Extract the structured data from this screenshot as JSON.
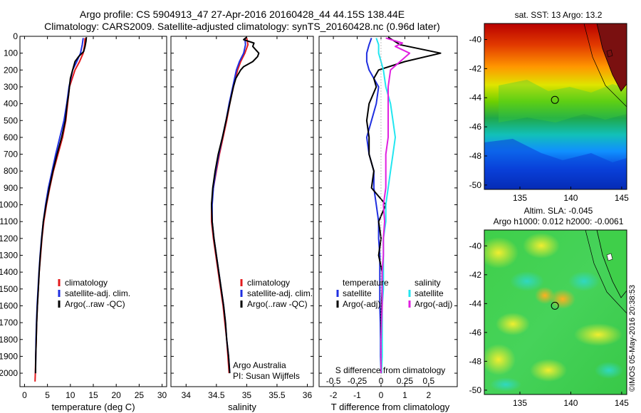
{
  "header": {
    "title_line1": "Argo profile: CS 5904913_47 27-Apr-2016 20160428_44 44.15S 138.44E",
    "title_line2": "Climatology: CARS2009. Satellite-adjusted climatology: synTS_20160428.nc (0.96d later)"
  },
  "colors": {
    "climatology": "#e31a1c",
    "satellite": "#1f2fe0",
    "argo": "#000000",
    "sal_satellite": "#22e6f0",
    "sal_argo": "#e020e0"
  },
  "chart_data": [
    {
      "id": "temperature",
      "type": "line",
      "xlabel": "temperature (deg C)",
      "ylabel": "",
      "xlim": [
        -1,
        31
      ],
      "ylim": [
        0,
        2080
      ],
      "y_inverted": true,
      "xticks": [
        0,
        5,
        10,
        15,
        20,
        25,
        30
      ],
      "yticks": [
        0,
        100,
        200,
        300,
        400,
        500,
        600,
        700,
        800,
        900,
        1000,
        1100,
        1200,
        1300,
        1400,
        1500,
        1600,
        1700,
        1800,
        1900,
        2000
      ],
      "legend": {
        "placement": "bottom-center",
        "entries": [
          "climatology",
          "satellite-adj. clim.",
          "Argo(..raw -QC)"
        ]
      },
      "series": [
        {
          "name": "climatology",
          "color": "#e31a1c",
          "depth": [
            10,
            50,
            100,
            150,
            200,
            300,
            400,
            500,
            600,
            700,
            800,
            900,
            1000,
            1100,
            1200,
            1300,
            1400,
            1500,
            1600,
            1700,
            1800,
            1900,
            2000,
            2050
          ],
          "values": [
            13.2,
            13.1,
            12.8,
            12.0,
            11.0,
            9.8,
            9.4,
            9.0,
            8.3,
            7.3,
            6.3,
            5.5,
            4.8,
            4.2,
            3.8,
            3.5,
            3.2,
            3.0,
            2.8,
            2.65,
            2.55,
            2.45,
            2.35,
            2.3
          ]
        },
        {
          "name": "satellite-adj. clim.",
          "color": "#1f2fe0",
          "depth": [
            10,
            50,
            100,
            150,
            200,
            300,
            400,
            500,
            600,
            700,
            800,
            900,
            1000,
            1100,
            1200,
            1300,
            1400,
            1500,
            1600,
            1700,
            1800,
            1900,
            2000
          ],
          "values": [
            12.8,
            12.6,
            12.2,
            11.4,
            10.5,
            9.7,
            9.2,
            8.6,
            7.7,
            6.8,
            6.0,
            5.2,
            4.6,
            4.1,
            3.7,
            3.4,
            3.15,
            2.95,
            2.75,
            2.6,
            2.5,
            2.45,
            2.4
          ]
        },
        {
          "name": "Argo(..raw -QC)",
          "color": "#000000",
          "depth": [
            5,
            30,
            60,
            90,
            120,
            150,
            200,
            250,
            300,
            350,
            400,
            500,
            600,
            700,
            800,
            900,
            1000,
            1100,
            1200,
            1300,
            1400,
            1500,
            1600,
            1700,
            1800,
            1900,
            2000
          ],
          "values": [
            13.5,
            13.4,
            13.2,
            12.9,
            11.8,
            11.0,
            10.5,
            10.0,
            9.8,
            9.6,
            9.3,
            8.9,
            8.1,
            7.1,
            6.2,
            5.4,
            4.7,
            4.1,
            3.75,
            3.45,
            3.2,
            3.0,
            2.8,
            2.65,
            2.55,
            2.45,
            2.4
          ]
        }
      ]
    },
    {
      "id": "salinity",
      "type": "line",
      "xlabel": "salinity",
      "ylabel": "",
      "xlim": [
        33.75,
        36.1
      ],
      "ylim": [
        0,
        2080
      ],
      "y_inverted": true,
      "xticks": [
        34,
        34.5,
        35,
        35.5,
        36
      ],
      "legend": {
        "placement": "bottom-center",
        "entries": [
          "climatology",
          "satellite-adj. clim.",
          "Argo(..raw -QC)"
        ]
      },
      "annotation": [
        "Argo Australia",
        "PI: Susan Wijffels"
      ],
      "series": [
        {
          "name": "climatology",
          "color": "#e31a1c",
          "depth": [
            10,
            50,
            100,
            150,
            200,
            300,
            400,
            500,
            600,
            700,
            800,
            900,
            1000,
            1100,
            1200,
            1300,
            1400,
            1500,
            1600,
            1700,
            1800,
            1900,
            2000
          ],
          "values": [
            35.0,
            35.02,
            34.97,
            34.9,
            34.85,
            34.78,
            34.72,
            34.67,
            34.61,
            34.55,
            34.5,
            34.45,
            34.42,
            34.42,
            34.45,
            34.49,
            34.53,
            34.57,
            34.61,
            34.64,
            34.67,
            34.69,
            34.71
          ]
        },
        {
          "name": "satellite-adj. clim.",
          "color": "#1f2fe0",
          "depth": [
            10,
            50,
            100,
            150,
            200,
            300,
            400,
            500,
            600,
            700,
            800,
            900,
            1000,
            1100,
            1200,
            1300,
            1400,
            1500,
            1600,
            1700,
            1800,
            1900,
            2000
          ],
          "values": [
            34.97,
            34.98,
            34.95,
            34.88,
            34.83,
            34.77,
            34.71,
            34.66,
            34.6,
            34.54,
            34.49,
            34.45,
            34.43,
            34.43,
            34.46,
            34.5,
            34.54,
            34.58,
            34.62,
            34.65,
            34.67,
            34.7,
            34.72
          ]
        },
        {
          "name": "Argo(..raw -QC)",
          "color": "#000000",
          "depth": [
            5,
            20,
            40,
            60,
            80,
            100,
            120,
            150,
            180,
            200,
            250,
            300,
            350,
            400,
            500,
            600,
            700,
            800,
            900,
            1000,
            1100,
            1200,
            1300,
            1400,
            1500,
            1600,
            1700,
            1800,
            1900,
            2000
          ],
          "values": [
            35.0,
            34.95,
            35.12,
            35.1,
            35.15,
            35.2,
            35.18,
            35.1,
            34.95,
            34.9,
            34.82,
            34.78,
            34.75,
            34.72,
            34.66,
            34.6,
            34.53,
            34.48,
            34.44,
            34.42,
            34.43,
            34.46,
            34.5,
            34.54,
            34.58,
            34.62,
            34.65,
            34.67,
            34.7,
            34.72
          ]
        }
      ]
    },
    {
      "id": "difference",
      "type": "line",
      "xlabel": "T difference from climatology",
      "top_label": "S difference from climatology",
      "xlim": [
        -2.6,
        3.2
      ],
      "xticks": [
        -2,
        -1,
        0,
        1,
        2
      ],
      "top_ticks": [
        "-0.5",
        "-0.25",
        "0",
        "0.25",
        "0.5"
      ],
      "top_tick_positions": [
        -2,
        -1,
        0,
        1,
        2
      ],
      "ylim": [
        0,
        2080
      ],
      "y_inverted": true,
      "legend": {
        "placement": "bottom-center",
        "temperature_title": "temperature",
        "salinity_title": "salinity",
        "temperature_entries": [
          "satellite",
          "Argo(-adj)"
        ],
        "salinity_entries": [
          "satellite",
          "Argo(-adj)"
        ]
      },
      "series": [
        {
          "name": "satellite",
          "color": "#1f2fe0",
          "depth": [
            10,
            50,
            100,
            150,
            200,
            300,
            400,
            500,
            600,
            700,
            800,
            900,
            1000,
            1100,
            1200,
            1300,
            1400,
            1500,
            1600,
            1700,
            1800,
            1900,
            2000
          ],
          "values": [
            -0.4,
            -0.5,
            -0.6,
            -0.6,
            -0.5,
            -0.1,
            -0.2,
            -0.4,
            -0.6,
            -0.5,
            -0.3,
            -0.3,
            -0.2,
            -0.1,
            -0.1,
            -0.05,
            -0.05,
            -0.05,
            -0.05,
            -0.03,
            -0.02,
            -0.02,
            0.0
          ]
        },
        {
          "name": "Argo(-adj)",
          "color": "#000000",
          "depth": [
            5,
            50,
            100,
            150,
            200,
            250,
            300,
            400,
            500,
            600,
            700,
            800,
            900,
            1000,
            1100,
            1200,
            1300,
            1400,
            1500,
            1600,
            1700,
            1800,
            1900,
            2000
          ],
          "values": [
            0.3,
            0.8,
            2.5,
            1.0,
            -0.1,
            -0.3,
            -0.2,
            -0.5,
            -0.6,
            -0.5,
            -0.5,
            -0.3,
            -0.4,
            0.2,
            -0.1,
            0.0,
            -0.1,
            0.05,
            0.05,
            0.02,
            0.0,
            0.0,
            0.02,
            0.02
          ]
        },
        {
          "name": "satellite",
          "color": "#22e6f0",
          "depth": [
            10,
            50,
            100,
            150,
            200,
            300,
            400,
            500,
            600,
            700,
            800,
            900,
            1000,
            1100,
            1200,
            1300,
            1400,
            1500,
            1600,
            1700,
            1800,
            1900,
            2000
          ],
          "values": [
            -0.2,
            -0.1,
            -0.1,
            0.0,
            0.1,
            0.2,
            0.4,
            0.5,
            0.6,
            0.5,
            0.4,
            0.3,
            0.2,
            0.2,
            0.1,
            0.1,
            0.1,
            0.1,
            0.05,
            0.05,
            0.05,
            0.05,
            0.02
          ]
        },
        {
          "name": "Argo(-adj)",
          "color": "#e020e0",
          "depth": [
            10,
            40,
            60,
            100,
            150,
            200,
            300,
            400,
            500,
            600,
            700,
            800,
            900,
            1000,
            1100,
            1200,
            1300,
            1400,
            1500,
            1600,
            1700,
            1800,
            1900,
            2000
          ],
          "values": [
            0.2,
            0.9,
            0.6,
            1.2,
            0.8,
            0.4,
            0.3,
            0.3,
            0.3,
            0.3,
            0.2,
            0.2,
            0.2,
            0.1,
            0.15,
            0.1,
            0.1,
            0.05,
            0.05,
            0.05,
            0.02,
            0.0,
            0.0,
            0.0
          ]
        }
      ]
    },
    {
      "id": "sst_map",
      "type": "heatmap",
      "title": "sat. SST: 13 Argo: 13.2",
      "xticks": [
        135,
        140,
        145
      ],
      "yticks": [
        -40,
        -42,
        -44,
        -46,
        -48,
        -50
      ],
      "xlim": [
        131.5,
        145.5
      ],
      "ylim": [
        -50.3,
        -38.9
      ],
      "marker": {
        "lon": 138.44,
        "lat": -44.15
      },
      "colorscale": "jet"
    },
    {
      "id": "sla_map",
      "type": "heatmap",
      "title_line1": "Altim. SLA: -0.045",
      "title_line2": "Argo h1000: 0.012 h2000: -0.0061",
      "xticks": [
        135,
        140,
        145
      ],
      "yticks": [
        -40,
        -42,
        -44,
        -46,
        -48,
        -50
      ],
      "xlim": [
        131.5,
        145.5
      ],
      "ylim": [
        -50.3,
        -38.9
      ],
      "marker": {
        "lon": 138.44,
        "lat": -44.15
      },
      "colorscale": "jet"
    }
  ],
  "footer": {
    "credit": "©IMOS 05-May-2016 20:38:53"
  }
}
